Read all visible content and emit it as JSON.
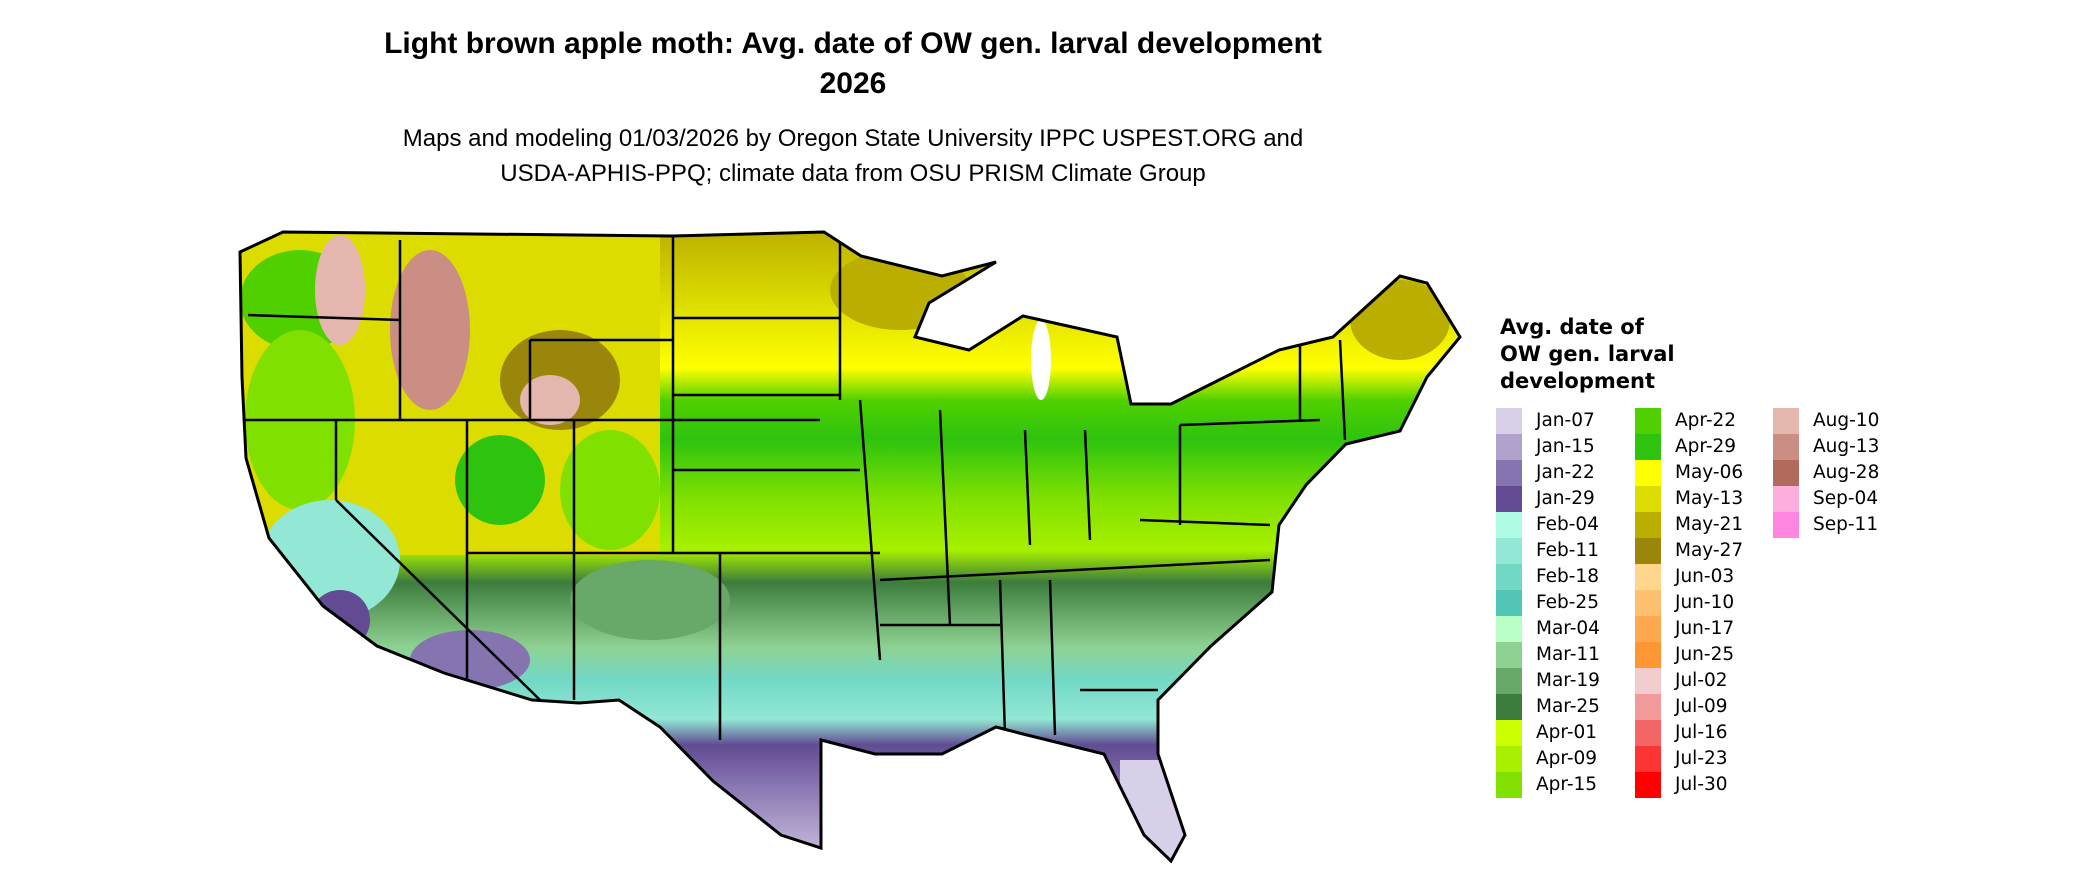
{
  "title": {
    "line1": "Light brown apple moth: Avg. date of OW gen. larval development",
    "line2": "2026"
  },
  "subtitle": {
    "line1": "Maps and modeling 01/03/2026 by Oregon State University IPPC USPEST.ORG and",
    "line2": "USDA-APHIS-PPQ; climate data from OSU PRISM Climate Group"
  },
  "legend": {
    "title_lines": [
      "Avg. date of",
      "OW gen. larval",
      "development"
    ],
    "columns": [
      [
        {
          "label": "Jan-07",
          "color": "#d8d0e8"
        },
        {
          "label": "Jan-15",
          "color": "#b0a2cc"
        },
        {
          "label": "Jan-22",
          "color": "#8674b0"
        },
        {
          "label": "Jan-29",
          "color": "#624b92"
        },
        {
          "label": "Feb-04",
          "color": "#affae2"
        },
        {
          "label": "Feb-11",
          "color": "#92e8d4"
        },
        {
          "label": "Feb-18",
          "color": "#72d8c6"
        },
        {
          "label": "Feb-25",
          "color": "#52c6b6"
        },
        {
          "label": "Mar-04",
          "color": "#baffc6"
        },
        {
          "label": "Mar-11",
          "color": "#8ed293"
        },
        {
          "label": "Mar-19",
          "color": "#68a868"
        },
        {
          "label": "Mar-25",
          "color": "#3c7c3c"
        },
        {
          "label": "Apr-01",
          "color": "#ccff00"
        },
        {
          "label": "Apr-09",
          "color": "#a8f000"
        },
        {
          "label": "Apr-15",
          "color": "#80e000"
        }
      ],
      [
        {
          "label": "Apr-22",
          "color": "#50d000"
        },
        {
          "label": "Apr-29",
          "color": "#2ec30f"
        },
        {
          "label": "May-06",
          "color": "#ffff00"
        },
        {
          "label": "May-13",
          "color": "#dcdc00"
        },
        {
          "label": "May-21",
          "color": "#baae00"
        },
        {
          "label": "May-27",
          "color": "#9a860a"
        },
        {
          "label": "Jun-03",
          "color": "#fed68c"
        },
        {
          "label": "Jun-10",
          "color": "#fec06e"
        },
        {
          "label": "Jun-17",
          "color": "#fea850"
        },
        {
          "label": "Jun-25",
          "color": "#fe9634"
        },
        {
          "label": "Jul-02",
          "color": "#f2cccc"
        },
        {
          "label": "Jul-09",
          "color": "#f29a9a"
        },
        {
          "label": "Jul-16",
          "color": "#f26666"
        },
        {
          "label": "Jul-23",
          "color": "#fc3434"
        },
        {
          "label": "Jul-30",
          "color": "#fe0000"
        }
      ],
      [
        {
          "label": "Aug-10",
          "color": "#e4b6ae"
        },
        {
          "label": "Aug-13",
          "color": "#ca8e84"
        },
        {
          "label": "Aug-28",
          "color": "#b26a5c"
        },
        {
          "label": "Sep-04",
          "color": "#feaedc"
        },
        {
          "label": "Sep-11",
          "color": "#fe86e0"
        }
      ]
    ]
  }
}
